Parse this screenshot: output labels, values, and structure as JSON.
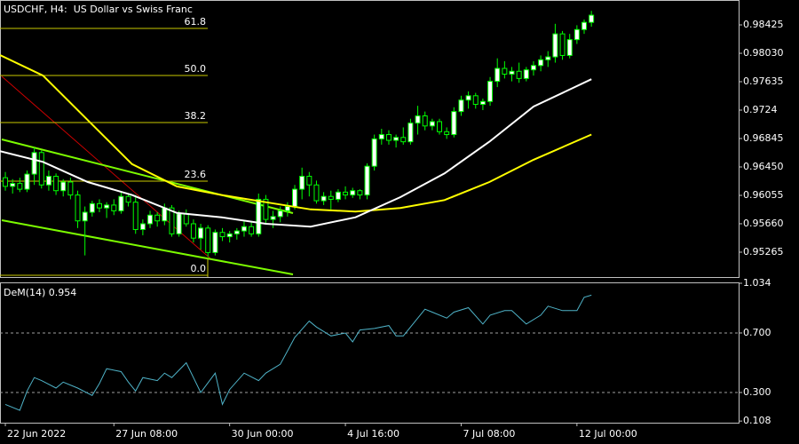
{
  "chart_data": [
    {
      "type": "candlestick",
      "title": "USDCHF, H4:  US Dollar vs Swiss Franc",
      "xlim": [
        -0.74,
        101.35
      ],
      "ylim": [
        0.94919,
        0.98771
      ],
      "yticks": [
        0.98425,
        {
          "value": 0.9803,
          "label": "0.98030"
        },
        0.97635,
        0.9724,
        0.96845,
        {
          "value": 0.9645,
          "label": "0.96450"
        },
        0.96055,
        {
          "value": 0.9566,
          "label": "0.95660"
        },
        0.95265
      ],
      "bull_color": "#ffffff",
      "bear_color": "#000000",
      "outline_color": "#00ff00",
      "open": [
        0.963,
        0.9618,
        0.9622,
        0.9614,
        0.9635,
        0.9665,
        0.962,
        0.9632,
        0.9612,
        0.9624,
        0.9606,
        0.957,
        0.9582,
        0.9594,
        0.9588,
        0.9592,
        0.9584,
        0.9604,
        0.9596,
        0.9558,
        0.9566,
        0.9578,
        0.957,
        0.9588,
        0.9552,
        0.958,
        0.9566,
        0.9546,
        0.956,
        0.9526,
        0.9554,
        0.9548,
        0.9552,
        0.9556,
        0.9562,
        0.9552,
        0.96,
        0.9572,
        0.9576,
        0.9584,
        0.959,
        0.9614,
        0.9632,
        0.962,
        0.9598,
        0.9604,
        0.96,
        0.961,
        0.9606,
        0.9612,
        0.9606,
        0.9646,
        0.9684,
        0.969,
        0.9682,
        0.9686,
        0.968,
        0.9706,
        0.9716,
        0.9702,
        0.9708,
        0.9694,
        0.969,
        0.9722,
        0.9738,
        0.9744,
        0.9732,
        0.9736,
        0.9764,
        0.9782,
        0.9774,
        0.9778,
        0.9768,
        0.978,
        0.9786,
        0.9794,
        0.9798,
        0.983,
        0.98,
        0.9822,
        0.9836,
        0.9846
      ],
      "high": [
        0.9638,
        0.9628,
        0.963,
        0.964,
        0.9672,
        0.9668,
        0.964,
        0.9636,
        0.9628,
        0.963,
        0.9612,
        0.959,
        0.9598,
        0.96,
        0.9596,
        0.96,
        0.961,
        0.9608,
        0.9606,
        0.9572,
        0.9584,
        0.9582,
        0.9594,
        0.9592,
        0.9584,
        0.9586,
        0.9572,
        0.9566,
        0.9564,
        0.9558,
        0.956,
        0.9556,
        0.956,
        0.957,
        0.9568,
        0.9608,
        0.9606,
        0.9584,
        0.959,
        0.9596,
        0.962,
        0.9644,
        0.9638,
        0.9626,
        0.961,
        0.9612,
        0.9614,
        0.9618,
        0.9616,
        0.9614,
        0.965,
        0.969,
        0.9698,
        0.9696,
        0.969,
        0.97,
        0.9712,
        0.973,
        0.9722,
        0.9712,
        0.9712,
        0.97,
        0.9728,
        0.9744,
        0.975,
        0.9748,
        0.974,
        0.977,
        0.9796,
        0.9792,
        0.9784,
        0.979,
        0.9784,
        0.9792,
        0.98,
        0.9806,
        0.9844,
        0.9834,
        0.983,
        0.9842,
        0.985,
        0.9862
      ],
      "low": [
        0.9612,
        0.9608,
        0.961,
        0.961,
        0.962,
        0.9615,
        0.9612,
        0.9606,
        0.9604,
        0.96,
        0.956,
        0.9522,
        0.9576,
        0.9582,
        0.9574,
        0.9578,
        0.958,
        0.959,
        0.9552,
        0.955,
        0.956,
        0.9562,
        0.9564,
        0.9548,
        0.9548,
        0.9562,
        0.954,
        0.953,
        0.952,
        0.9522,
        0.9542,
        0.954,
        0.9544,
        0.9548,
        0.9548,
        0.9548,
        0.9566,
        0.956,
        0.9568,
        0.9576,
        0.9586,
        0.96,
        0.9604,
        0.9594,
        0.9592,
        0.9586,
        0.9596,
        0.96,
        0.9602,
        0.96,
        0.96,
        0.964,
        0.9676,
        0.9676,
        0.9672,
        0.9676,
        0.9676,
        0.969,
        0.9696,
        0.9696,
        0.969,
        0.9684,
        0.9686,
        0.9716,
        0.9726,
        0.9726,
        0.9724,
        0.973,
        0.9756,
        0.9768,
        0.9764,
        0.9762,
        0.9764,
        0.9772,
        0.9778,
        0.9784,
        0.979,
        0.9794,
        0.9796,
        0.9816,
        0.983,
        0.984
      ],
      "close": [
        0.9618,
        0.9622,
        0.9614,
        0.9635,
        0.9665,
        0.962,
        0.9632,
        0.9612,
        0.9624,
        0.9606,
        0.957,
        0.9582,
        0.9594,
        0.9588,
        0.9592,
        0.9584,
        0.9604,
        0.9596,
        0.9558,
        0.9566,
        0.9578,
        0.957,
        0.9588,
        0.9552,
        0.958,
        0.9566,
        0.9546,
        0.956,
        0.9526,
        0.9554,
        0.9548,
        0.9552,
        0.9556,
        0.9562,
        0.9552,
        0.96,
        0.9572,
        0.9576,
        0.9584,
        0.959,
        0.9614,
        0.9632,
        0.962,
        0.9598,
        0.9604,
        0.96,
        0.961,
        0.9606,
        0.9612,
        0.9606,
        0.9646,
        0.9684,
        0.969,
        0.9682,
        0.9686,
        0.968,
        0.9706,
        0.9716,
        0.9702,
        0.9708,
        0.9694,
        0.969,
        0.9722,
        0.9738,
        0.9744,
        0.9732,
        0.9736,
        0.9764,
        0.9782,
        0.9774,
        0.9778,
        0.9768,
        0.978,
        0.9786,
        0.9794,
        0.9798,
        0.983,
        0.98,
        0.9822,
        0.9836,
        0.9846,
        0.9856
      ],
      "series": [
        {
          "color": "#ffff00",
          "x": [
            -0.74,
            5.2,
            11.4,
            17.5,
            23.7,
            29.9,
            36,
            42.2,
            48.4,
            54.6,
            60.7,
            66.9,
            73,
            81
          ],
          "values": [
            0.98005,
            0.9772,
            0.971,
            0.9649,
            0.9618,
            0.9606,
            0.9596,
            0.9586,
            0.9583,
            0.9588,
            0.9599,
            0.9624,
            0.9655,
            0.969
          ]
        },
        {
          "color": "#ffffff",
          "x": [
            -0.74,
            5.2,
            11.4,
            17.5,
            23.7,
            29.9,
            36,
            42.2,
            48.4,
            54.6,
            60.7,
            66.9,
            73,
            81
          ],
          "values": [
            0.9667,
            0.9652,
            0.9624,
            0.9606,
            0.9581,
            0.9575,
            0.9566,
            0.9562,
            0.9575,
            0.9603,
            0.9636,
            0.968,
            0.9729,
            0.9767
          ]
        }
      ],
      "levels_color": "#c8c800",
      "levels": [
        {
          "label": "61.8",
          "value": 0.98376
        },
        {
          "label": "50.0",
          "value": 0.97721
        },
        {
          "label": "38.2",
          "value": 0.97067
        },
        {
          "label": "23.6",
          "value": 0.96253
        },
        {
          "label": "0.0",
          "value": 0.94944
        }
      ]
    },
    {
      "type": "line",
      "title": "DeM(14) 0.954",
      "xlim": [
        -0.74,
        101.35
      ],
      "ylim": [
        0.097,
        1.04
      ],
      "yticks": [
        1.034,
        {
          "value": 0.7,
          "label": "0.700"
        },
        {
          "value": 0.3,
          "label": "0.300"
        },
        0.108
      ],
      "xticks": [
        {
          "value": 0,
          "label": "22 Jun 2022"
        },
        {
          "value": 15,
          "label": "27 Jun 08:00"
        },
        {
          "value": 31,
          "label": "30 Jun 00:00"
        },
        {
          "value": 47,
          "label": "4 Jul 16:00"
        },
        {
          "value": 63,
          "label": "7 Jul 08:00"
        },
        {
          "value": 79,
          "label": "12 Jul 00:00"
        }
      ],
      "series": [
        {
          "color": "#4fb3c8",
          "x": [
            0,
            2,
            3,
            4,
            5,
            7,
            8,
            10,
            12,
            13,
            14,
            16,
            17,
            18,
            19,
            21,
            22,
            23,
            25,
            26,
            27,
            29,
            30,
            31,
            33,
            35,
            36,
            38,
            39,
            40,
            42,
            43,
            45,
            47,
            48,
            49,
            51,
            53,
            54,
            55,
            56,
            58,
            59,
            61,
            62,
            64,
            66,
            67,
            69,
            70,
            72,
            74,
            75,
            77,
            79,
            80,
            81
          ],
          "values": [
            0.22,
            0.18,
            0.31,
            0.4,
            0.38,
            0.33,
            0.37,
            0.33,
            0.28,
            0.36,
            0.46,
            0.44,
            0.37,
            0.31,
            0.4,
            0.38,
            0.43,
            0.4,
            0.5,
            0.4,
            0.3,
            0.43,
            0.22,
            0.32,
            0.43,
            0.38,
            0.43,
            0.49,
            0.58,
            0.67,
            0.78,
            0.74,
            0.68,
            0.7,
            0.64,
            0.72,
            0.73,
            0.75,
            0.68,
            0.68,
            0.74,
            0.86,
            0.84,
            0.8,
            0.84,
            0.87,
            0.76,
            0.82,
            0.85,
            0.85,
            0.76,
            0.82,
            0.88,
            0.85,
            0.85,
            0.94,
            0.954
          ]
        }
      ]
    }
  ]
}
